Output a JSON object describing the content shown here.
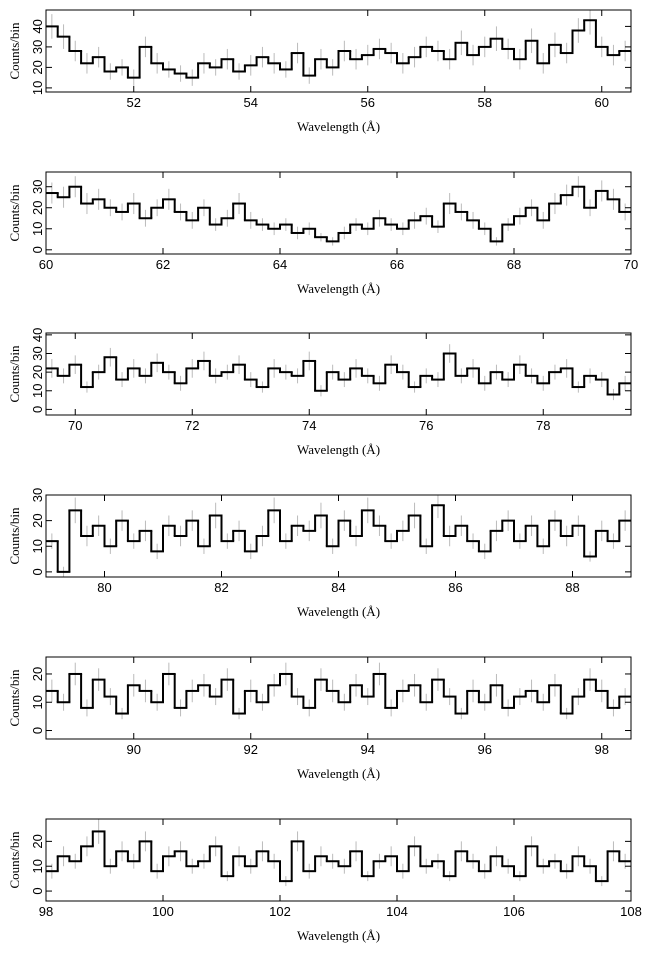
{
  "chart_data": [
    {
      "type": "histogram",
      "xlabel": "Wavelength (Å)",
      "ylabel": "Counts/bin",
      "color": "#000000",
      "error_color": "#bbbbbb",
      "bins": [
        50.5,
        50.7,
        50.9,
        51.1,
        51.3,
        51.5,
        51.7,
        51.9,
        52.1,
        52.3,
        52.5,
        52.7,
        52.9,
        53.1,
        53.3,
        53.5,
        53.7,
        53.9,
        54.1,
        54.3,
        54.5,
        54.7,
        54.9,
        55.1,
        55.3,
        55.5,
        55.7,
        55.9,
        56.1,
        56.3,
        56.5,
        56.7,
        56.9,
        57.1,
        57.3,
        57.5,
        57.7,
        57.9,
        58.1,
        58.3,
        58.5,
        58.7,
        58.9,
        59.1,
        59.3,
        59.5,
        59.7,
        59.9,
        60.1,
        60.3,
        60.5
      ],
      "values": [
        40,
        35,
        28,
        22,
        25,
        18,
        20,
        15,
        30,
        22,
        19,
        17,
        15,
        22,
        20,
        24,
        18,
        21,
        25,
        22,
        19,
        27,
        16,
        24,
        20,
        28,
        24,
        26,
        29,
        27,
        22,
        25,
        30,
        28,
        24,
        32,
        26,
        30,
        34,
        29,
        24,
        33,
        22,
        31,
        27,
        38,
        43,
        30,
        26,
        28
      ],
      "errors": [
        6,
        6,
        5,
        5,
        5,
        4,
        4,
        4,
        5,
        5,
        4,
        4,
        4,
        5,
        4,
        5,
        4,
        5,
        5,
        5,
        4,
        5,
        4,
        5,
        4,
        5,
        5,
        5,
        5,
        5,
        5,
        5,
        5,
        5,
        5,
        6,
        5,
        5,
        6,
        5,
        5,
        6,
        5,
        6,
        5,
        6,
        7,
        5,
        5,
        5
      ],
      "xlim": [
        50.5,
        60.5
      ],
      "xticks": [
        52,
        54,
        56,
        58,
        60
      ],
      "ylim": [
        8,
        48
      ],
      "yticks": [
        10,
        20,
        30,
        40
      ]
    },
    {
      "type": "histogram",
      "xlabel": "Wavelength (Å)",
      "ylabel": "Counts/bin",
      "color": "#000000",
      "error_color": "#bbbbbb",
      "bins": [
        60,
        60.2,
        60.4,
        60.6,
        60.8,
        61,
        61.2,
        61.4,
        61.6,
        61.8,
        62,
        62.2,
        62.4,
        62.6,
        62.8,
        63,
        63.2,
        63.4,
        63.6,
        63.8,
        64,
        64.2,
        64.4,
        64.6,
        64.8,
        65,
        65.2,
        65.4,
        65.6,
        65.8,
        66,
        66.2,
        66.4,
        66.6,
        66.8,
        67,
        67.2,
        67.4,
        67.6,
        67.8,
        68,
        68.2,
        68.4,
        68.6,
        68.8,
        69,
        69.2,
        69.4,
        69.6,
        69.8,
        70
      ],
      "values": [
        27,
        25,
        30,
        22,
        24,
        20,
        18,
        22,
        15,
        20,
        24,
        18,
        14,
        20,
        12,
        15,
        22,
        14,
        12,
        10,
        12,
        8,
        10,
        6,
        4,
        8,
        12,
        10,
        15,
        12,
        10,
        14,
        16,
        11,
        22,
        18,
        14,
        10,
        4,
        12,
        16,
        20,
        14,
        22,
        26,
        30,
        20,
        28,
        24,
        18
      ],
      "errors": [
        5,
        5,
        5,
        5,
        5,
        4,
        4,
        5,
        4,
        4,
        5,
        4,
        4,
        4,
        3,
        4,
        5,
        4,
        3,
        3,
        3,
        3,
        3,
        2,
        2,
        3,
        3,
        3,
        4,
        3,
        3,
        4,
        4,
        3,
        5,
        4,
        4,
        3,
        2,
        3,
        4,
        4,
        4,
        5,
        5,
        5,
        4,
        5,
        5,
        4
      ],
      "xlim": [
        60,
        70
      ],
      "xticks": [
        60,
        62,
        64,
        66,
        68,
        70
      ],
      "ylim": [
        -2,
        37
      ],
      "yticks": [
        0,
        10,
        20,
        30
      ]
    },
    {
      "type": "histogram",
      "xlabel": "Wavelength (Å)",
      "ylabel": "Counts/bin",
      "color": "#000000",
      "error_color": "#bbbbbb",
      "bins": [
        69.5,
        69.7,
        69.9,
        70.1,
        70.3,
        70.5,
        70.7,
        70.9,
        71.1,
        71.3,
        71.5,
        71.7,
        71.9,
        72.1,
        72.3,
        72.5,
        72.7,
        72.9,
        73.1,
        73.3,
        73.5,
        73.7,
        73.9,
        74.1,
        74.3,
        74.5,
        74.7,
        74.9,
        75.1,
        75.3,
        75.5,
        75.7,
        75.9,
        76.1,
        76.3,
        76.5,
        76.7,
        76.9,
        77.1,
        77.3,
        77.5,
        77.7,
        77.9,
        78.1,
        78.3,
        78.5,
        78.7,
        78.9,
        79.1,
        79.3,
        79.5
      ],
      "values": [
        22,
        18,
        24,
        12,
        20,
        28,
        16,
        22,
        18,
        25,
        20,
        14,
        22,
        26,
        18,
        20,
        24,
        16,
        12,
        22,
        20,
        18,
        26,
        10,
        20,
        16,
        22,
        18,
        14,
        24,
        20,
        12,
        18,
        16,
        30,
        18,
        22,
        14,
        20,
        16,
        24,
        18,
        14,
        20,
        22,
        12,
        18,
        16,
        8,
        14
      ],
      "errors": [
        5,
        4,
        5,
        3,
        4,
        5,
        4,
        5,
        4,
        5,
        4,
        4,
        5,
        5,
        4,
        4,
        5,
        4,
        3,
        5,
        4,
        4,
        5,
        3,
        4,
        4,
        5,
        4,
        4,
        5,
        4,
        3,
        4,
        4,
        5,
        4,
        5,
        4,
        4,
        4,
        5,
        4,
        4,
        4,
        5,
        3,
        4,
        4,
        3,
        4
      ],
      "xlim": [
        69.5,
        79.5
      ],
      "xticks": [
        70,
        72,
        74,
        76,
        78
      ],
      "ylim": [
        -3,
        41
      ],
      "yticks": [
        0,
        10,
        20,
        30,
        40
      ]
    },
    {
      "type": "histogram",
      "xlabel": "Wavelength (Å)",
      "ylabel": "Counts/bin",
      "color": "#000000",
      "error_color": "#bbbbbb",
      "bins": [
        79,
        79.2,
        79.4,
        79.6,
        79.8,
        80,
        80.2,
        80.4,
        80.6,
        80.8,
        81,
        81.2,
        81.4,
        81.6,
        81.8,
        82,
        82.2,
        82.4,
        82.6,
        82.8,
        83,
        83.2,
        83.4,
        83.6,
        83.8,
        84,
        84.2,
        84.4,
        84.6,
        84.8,
        85,
        85.2,
        85.4,
        85.6,
        85.8,
        86,
        86.2,
        86.4,
        86.6,
        86.8,
        87,
        87.2,
        87.4,
        87.6,
        87.8,
        88,
        88.2,
        88.4,
        88.6,
        88.8,
        89
      ],
      "values": [
        12,
        0,
        24,
        14,
        18,
        10,
        20,
        12,
        16,
        8,
        18,
        14,
        20,
        10,
        22,
        12,
        16,
        8,
        14,
        24,
        12,
        18,
        16,
        22,
        10,
        20,
        14,
        24,
        18,
        12,
        16,
        22,
        10,
        26,
        14,
        18,
        12,
        8,
        16,
        20,
        12,
        18,
        10,
        20,
        14,
        18,
        6,
        16,
        12,
        20
      ],
      "errors": [
        3,
        2,
        5,
        4,
        4,
        3,
        4,
        3,
        4,
        3,
        4,
        4,
        4,
        3,
        5,
        3,
        4,
        3,
        4,
        5,
        3,
        4,
        4,
        5,
        3,
        4,
        4,
        5,
        4,
        3,
        4,
        5,
        3,
        5,
        4,
        4,
        3,
        3,
        4,
        4,
        3,
        4,
        3,
        4,
        4,
        4,
        2,
        4,
        3,
        4
      ],
      "xlim": [
        79,
        89
      ],
      "xticks": [
        80,
        82,
        84,
        86,
        88
      ],
      "ylim": [
        -2,
        30
      ],
      "yticks": [
        0,
        10,
        20,
        30
      ]
    },
    {
      "type": "histogram",
      "xlabel": "Wavelength (Å)",
      "ylabel": "Counts/bin",
      "color": "#000000",
      "error_color": "#bbbbbb",
      "bins": [
        88.5,
        88.7,
        88.9,
        89.1,
        89.3,
        89.5,
        89.7,
        89.9,
        90.1,
        90.3,
        90.5,
        90.7,
        90.9,
        91.1,
        91.3,
        91.5,
        91.7,
        91.9,
        92.1,
        92.3,
        92.5,
        92.7,
        92.9,
        93.1,
        93.3,
        93.5,
        93.7,
        93.9,
        94.1,
        94.3,
        94.5,
        94.7,
        94.9,
        95.1,
        95.3,
        95.5,
        95.7,
        95.9,
        96.1,
        96.3,
        96.5,
        96.7,
        96.9,
        97.1,
        97.3,
        97.5,
        97.7,
        97.9,
        98.1,
        98.3,
        98.5
      ],
      "values": [
        14,
        10,
        20,
        8,
        18,
        12,
        6,
        16,
        14,
        10,
        20,
        8,
        14,
        16,
        12,
        18,
        6,
        14,
        10,
        16,
        20,
        12,
        8,
        18,
        14,
        10,
        16,
        12,
        20,
        8,
        14,
        16,
        10,
        18,
        12,
        6,
        14,
        10,
        16,
        8,
        12,
        14,
        10,
        16,
        6,
        12,
        18,
        14,
        8,
        12
      ],
      "errors": [
        4,
        3,
        4,
        3,
        4,
        3,
        2,
        4,
        4,
        3,
        4,
        3,
        4,
        4,
        3,
        4,
        2,
        4,
        3,
        4,
        4,
        3,
        3,
        4,
        4,
        3,
        4,
        3,
        4,
        3,
        4,
        4,
        3,
        4,
        3,
        2,
        4,
        3,
        4,
        3,
        3,
        4,
        3,
        4,
        2,
        3,
        4,
        4,
        3,
        3
      ],
      "xlim": [
        88.5,
        98.5
      ],
      "xticks": [
        90,
        92,
        94,
        96,
        98
      ],
      "ylim": [
        -3,
        26
      ],
      "yticks": [
        0,
        10,
        20
      ]
    },
    {
      "type": "histogram",
      "xlabel": "Wavelength (Å)",
      "ylabel": "Counts/bin",
      "color": "#000000",
      "error_color": "#bbbbbb",
      "bins": [
        98,
        98.2,
        98.4,
        98.6,
        98.8,
        99,
        99.2,
        99.4,
        99.6,
        99.8,
        100,
        100.2,
        100.4,
        100.6,
        100.8,
        101,
        101.2,
        101.4,
        101.6,
        101.8,
        102,
        102.2,
        102.4,
        102.6,
        102.8,
        103,
        103.2,
        103.4,
        103.6,
        103.8,
        104,
        104.2,
        104.4,
        104.6,
        104.8,
        105,
        105.2,
        105.4,
        105.6,
        105.8,
        106,
        106.2,
        106.4,
        106.6,
        106.8,
        107,
        107.2,
        107.4,
        107.6,
        107.8,
        108
      ],
      "values": [
        8,
        14,
        12,
        18,
        24,
        10,
        16,
        12,
        20,
        8,
        14,
        16,
        10,
        12,
        18,
        6,
        14,
        10,
        16,
        12,
        4,
        20,
        8,
        14,
        12,
        10,
        16,
        6,
        12,
        14,
        8,
        18,
        10,
        12,
        6,
        16,
        12,
        8,
        14,
        10,
        6,
        18,
        10,
        12,
        8,
        14,
        10,
        4,
        16,
        12
      ],
      "errors": [
        3,
        4,
        3,
        4,
        5,
        3,
        4,
        3,
        4,
        3,
        4,
        4,
        3,
        3,
        4,
        2,
        4,
        3,
        4,
        3,
        2,
        4,
        3,
        4,
        3,
        3,
        4,
        2,
        3,
        4,
        3,
        4,
        3,
        3,
        2,
        4,
        3,
        3,
        4,
        3,
        2,
        4,
        3,
        3,
        3,
        4,
        3,
        2,
        4,
        3
      ],
      "xlim": [
        98,
        108
      ],
      "xticks": [
        98,
        100,
        102,
        104,
        106,
        108
      ],
      "ylim": [
        -4,
        29
      ],
      "yticks": [
        0,
        10,
        20
      ]
    }
  ]
}
